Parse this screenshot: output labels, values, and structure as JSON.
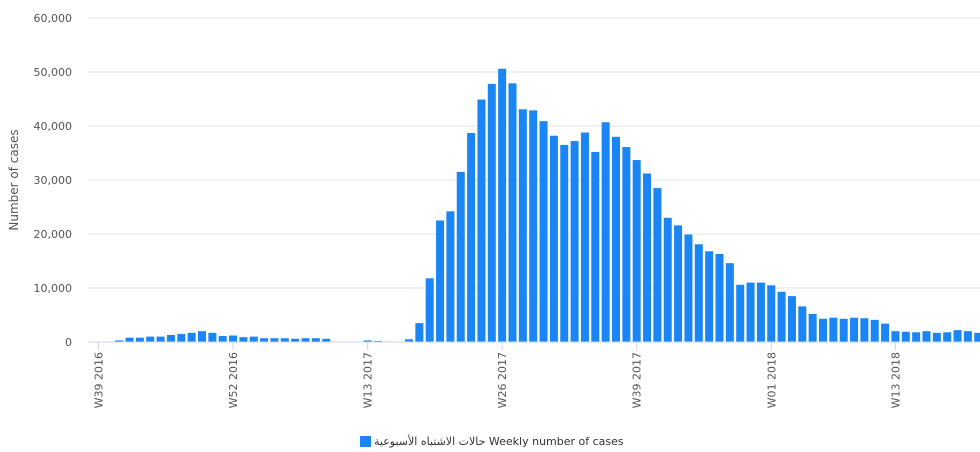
{
  "chart_data": {
    "type": "bar",
    "ylabel": "Number of cases",
    "ylim": [
      0,
      60000
    ],
    "yticks": [
      0,
      10000,
      20000,
      30000,
      40000,
      50000,
      60000
    ],
    "ytick_labels": [
      "0",
      "10,000",
      "20,000",
      "30,000",
      "40,000",
      "50,000",
      "60,000"
    ],
    "grid": true,
    "legend_position": "bottom-center",
    "color": "#1a86f5",
    "x_start_week": "W39 2016",
    "x_tick_labels": [
      {
        "index": 0,
        "label": "W39 2016"
      },
      {
        "index": 13,
        "label": "W52 2016"
      },
      {
        "index": 26,
        "label": "W13 2017"
      },
      {
        "index": 39,
        "label": "W26 2017"
      },
      {
        "index": 52,
        "label": "W39 2017"
      },
      {
        "index": 65,
        "label": "W01 2018"
      },
      {
        "index": 77,
        "label": "W13 2018"
      }
    ],
    "series": [
      {
        "name": "حالات الاشتباه الأسبوعية Weekly number of cases",
        "values": [
          50,
          100,
          300,
          800,
          800,
          1000,
          1000,
          1300,
          1500,
          1700,
          2000,
          1700,
          1100,
          1200,
          900,
          1000,
          700,
          700,
          700,
          600,
          700,
          700,
          600,
          100,
          100,
          100,
          300,
          200,
          100,
          100,
          500,
          3500,
          11800,
          22500,
          24200,
          31500,
          38700,
          44900,
          47800,
          50600,
          47900,
          43100,
          42900,
          40900,
          38200,
          36500,
          37200,
          38800,
          35200,
          40700,
          38000,
          36100,
          33700,
          31200,
          28500,
          23000,
          21600,
          19900,
          18100,
          16800,
          16300,
          14600,
          10600,
          11000,
          11000,
          10500,
          9300,
          8500,
          6600,
          5200,
          4300,
          4500,
          4300,
          4500,
          4400,
          4100,
          3400,
          2000,
          1900,
          1800,
          2000,
          1700,
          1800,
          2200,
          2000,
          1700
        ]
      }
    ]
  }
}
